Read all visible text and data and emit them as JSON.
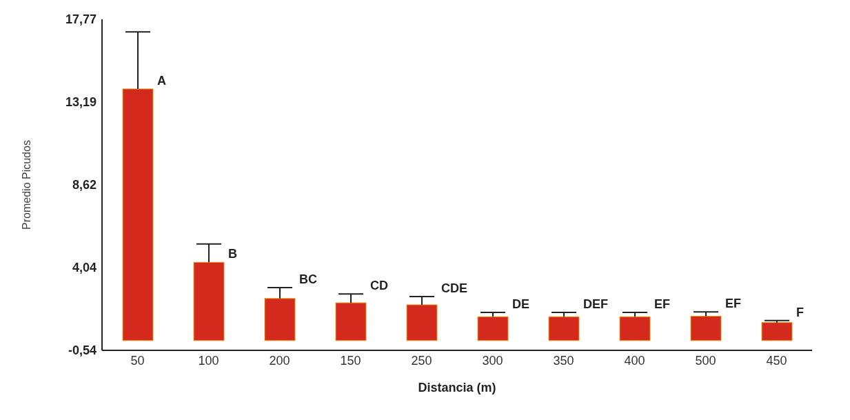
{
  "chart_data": {
    "type": "bar",
    "xlabel": "Distancia (m)",
    "ylabel": "Promedio Picudos",
    "categories": [
      "50",
      "100",
      "200",
      "150",
      "250",
      "300",
      "350",
      "400",
      "500",
      "450"
    ],
    "values": [
      13.92,
      4.33,
      2.33,
      2.09,
      1.98,
      1.32,
      1.32,
      1.32,
      1.35,
      1.0
    ],
    "errors": [
      [
        13.92,
        17.07
      ],
      [
        4.33,
        5.34
      ],
      [
        2.33,
        2.93
      ],
      [
        2.09,
        2.58
      ],
      [
        1.98,
        2.44
      ],
      [
        1.32,
        1.56
      ],
      [
        1.32,
        1.56
      ],
      [
        1.32,
        1.56
      ],
      [
        1.35,
        1.59
      ],
      [
        1.0,
        1.11
      ]
    ],
    "color": "#d42a1e",
    "ylim": [
      -0.54,
      17.77
    ],
    "yticks": [
      {
        "value": -0.54,
        "label": "-0,54"
      },
      {
        "value": 4.04,
        "label": "4,04"
      },
      {
        "value": 8.62,
        "label": "8,62"
      },
      {
        "value": 13.19,
        "label": "13,19"
      },
      {
        "value": 17.77,
        "label": "17,77"
      }
    ],
    "grid": false,
    "annotations": [
      {
        "text": "A",
        "x": "50",
        "y": 13.92
      },
      {
        "text": "B",
        "x": "100",
        "y": 4.33
      },
      {
        "text": "BC",
        "x": "200",
        "y": 2.93
      },
      {
        "text": "CD",
        "x": "150",
        "y": 2.58
      },
      {
        "text": "CDE",
        "x": "250",
        "y": 2.44
      },
      {
        "text": "DE",
        "x": "300",
        "y": 1.56
      },
      {
        "text": "DEF",
        "x": "350",
        "y": 1.56
      },
      {
        "text": "EF",
        "x": "400",
        "y": 1.56
      },
      {
        "text": "EF",
        "x": "500",
        "y": 1.59
      },
      {
        "text": "F",
        "x": "450",
        "y": 1.11
      }
    ]
  }
}
